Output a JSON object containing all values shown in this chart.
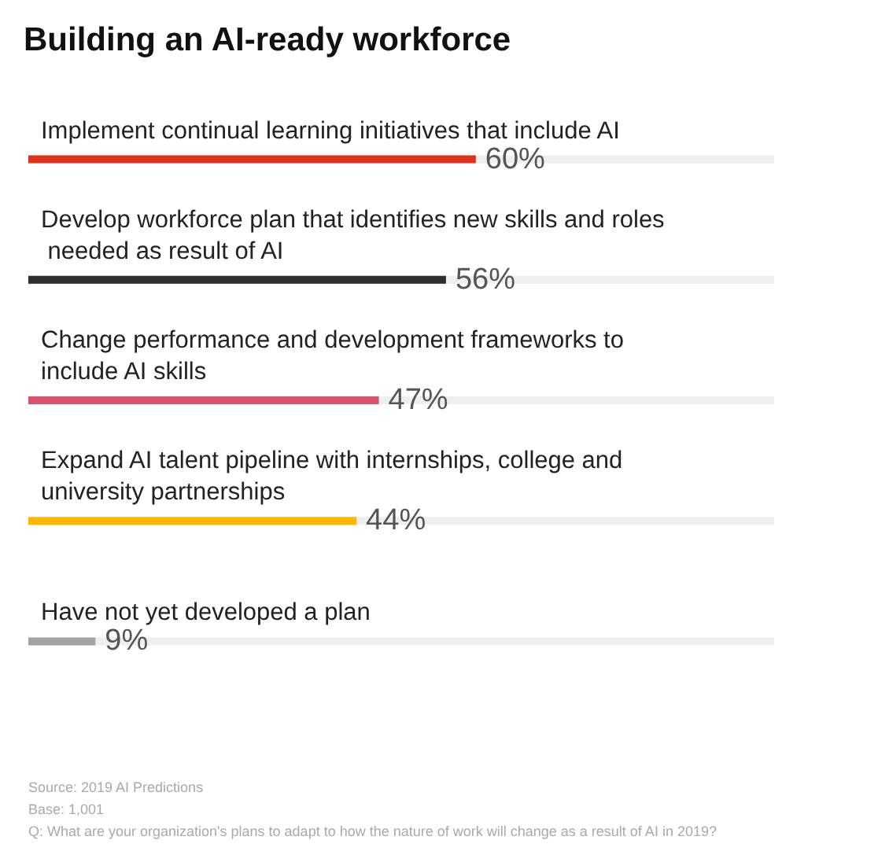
{
  "chart_data": {
    "type": "bar",
    "orientation": "horizontal",
    "title": "Building an AI-ready workforce",
    "categories": [
      "Implement continual learning initiatives that include AI",
      "Develop workforce plan that identifies new skills and roles needed as result of AI",
      "Change performance and development frameworks to include AI skills",
      "Expand AI talent pipeline with internships, college and university partnerships",
      "Have not yet developed a plan"
    ],
    "values": [
      60,
      56,
      47,
      44,
      9
    ],
    "colors": [
      "#e0301e",
      "#2d2d2d",
      "#db536a",
      "#ffb600",
      "#a3a3a3"
    ],
    "value_labels": [
      "60%",
      "56%",
      "47%",
      "44%",
      "9%"
    ],
    "xlim": [
      0,
      100
    ],
    "annotations": [
      "Source: 2019 AI Predictions",
      "Base: 1,001",
      "Q: What are your organization's plans to adapt to how the nature of work will change as a result of AI in 2019?"
    ]
  }
}
